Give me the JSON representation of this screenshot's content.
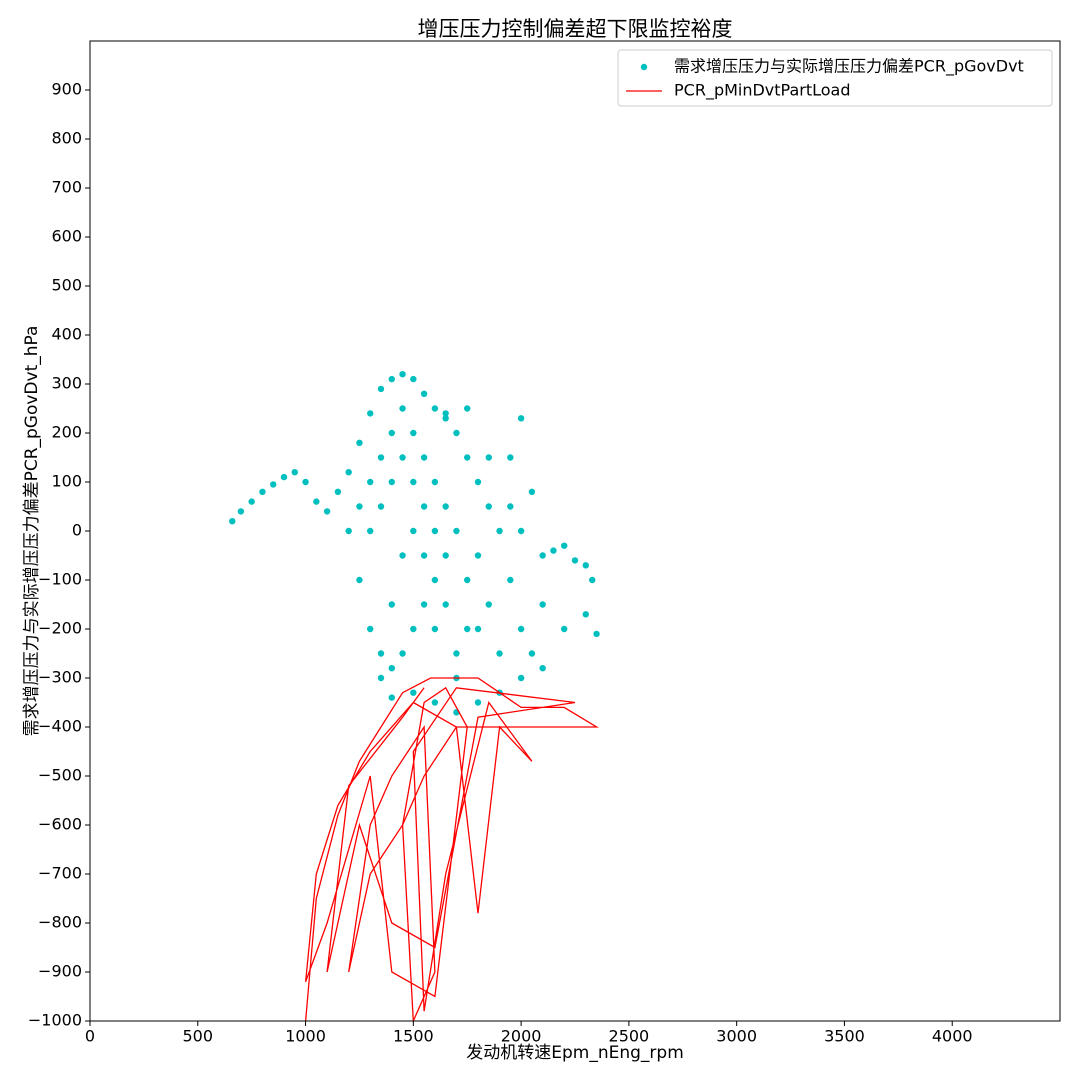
{
  "chart_data": {
    "type": "scatter",
    "title": "增压压力控制偏差超下限监控裕度",
    "x_label": "发动机转速Epm_nEng_rpm",
    "y_label": "需求增压压力与实际增压压力偏差PCR_pGovDvt_hPa",
    "xlim": [
      0,
      4500
    ],
    "ylim": [
      -1000,
      1000
    ],
    "xticks": [
      0,
      500,
      1000,
      1500,
      2000,
      2500,
      3000,
      3500,
      4000
    ],
    "yticks": [
      {
        "value": -1000,
        "label": "−1000"
      },
      {
        "value": -900,
        "label": "−900"
      },
      {
        "value": -800,
        "label": "−800"
      },
      {
        "value": -700,
        "label": "−700"
      },
      {
        "value": -600,
        "label": "−600"
      },
      {
        "value": -500,
        "label": "−500"
      },
      {
        "value": -400,
        "label": "−400"
      },
      {
        "value": -300,
        "label": "−300"
      },
      {
        "value": -200,
        "label": "−200"
      },
      {
        "value": -100,
        "label": "−100"
      },
      0,
      100,
      200,
      300,
      400,
      500,
      600,
      700,
      800,
      900
    ],
    "legend": "upper right",
    "series": [
      {
        "name": "需求增压压力与实际增压压力偏差PCR_pGovDvt",
        "type": "scatter",
        "color": "#00bfbf",
        "x": [
          660,
          700,
          750,
          800,
          850,
          900,
          950,
          1000,
          1050,
          1100,
          1150,
          1200,
          1250,
          1300,
          1350,
          1400,
          1450,
          1500,
          1550,
          1600,
          1650,
          1700,
          1750,
          1800,
          1850,
          1900,
          1950,
          2000,
          2050,
          2100,
          2150,
          2200,
          2250,
          2300,
          2330,
          2350,
          2300,
          2200,
          2100,
          2000,
          1900,
          1800,
          1700,
          1600,
          1500,
          1400,
          1350,
          1300,
          1250,
          1200,
          1250,
          1300,
          1350,
          1400,
          1450,
          1500,
          1550,
          1600,
          1650,
          1700,
          1650,
          1600,
          1550,
          1500,
          1450,
          1400,
          1350,
          1400,
          1450,
          1500,
          1550,
          1600,
          1700,
          1800,
          1750,
          1800,
          1850,
          1900,
          1950,
          2000,
          2050,
          2100,
          2000,
          1950,
          1850,
          1750,
          1650,
          1300,
          1350,
          1400,
          1450,
          1500,
          1550,
          1600,
          1650,
          1700,
          1750
        ],
        "y": [
          20,
          40,
          60,
          80,
          95,
          110,
          120,
          100,
          60,
          40,
          80,
          120,
          180,
          240,
          290,
          310,
          320,
          310,
          280,
          250,
          230,
          200,
          150,
          100,
          50,
          0,
          150,
          230,
          80,
          -50,
          -40,
          -30,
          -60,
          -70,
          -100,
          -210,
          -170,
          -200,
          -280,
          -300,
          -330,
          -350,
          -370,
          -350,
          -330,
          -340,
          -300,
          -200,
          -100,
          0,
          50,
          100,
          150,
          200,
          250,
          200,
          150,
          100,
          50,
          0,
          -50,
          -100,
          -150,
          -200,
          -250,
          -280,
          -250,
          -150,
          -50,
          0,
          50,
          -200,
          -250,
          -200,
          -100,
          -50,
          -150,
          -250,
          -100,
          -200,
          -250,
          -150,
          0,
          50,
          150,
          250,
          240,
          0,
          50,
          100,
          150,
          100,
          -50,
          0,
          -150,
          -300,
          -200
        ]
      },
      {
        "name": "PCR_pMinDvtPartLoad",
        "type": "line",
        "color": "#ff0000",
        "x": [
          1000,
          1050,
          1150,
          1250,
          1350,
          1450,
          1580,
          1800,
          1900,
          2000,
          2200,
          2350,
          2000,
          1700,
          1550,
          1450,
          1300,
          1200,
          1300,
          1400,
          1550,
          1600,
          1500,
          1450,
          1550,
          1650,
          1750,
          1600,
          1400,
          1300,
          1100,
          1000,
          1050,
          1150,
          1300,
          1500,
          1700,
          1800,
          1900,
          2050,
          1850,
          1650,
          1550,
          1500,
          1700,
          2250,
          1800,
          1600,
          1400,
          1250,
          1100,
          1200,
          1450,
          1550
        ],
        "y": [
          -1000,
          -750,
          -580,
          -470,
          -400,
          -330,
          -300,
          -300,
          -330,
          -360,
          -360,
          -400,
          -400,
          -400,
          -500,
          -600,
          -700,
          -900,
          -600,
          -500,
          -400,
          -900,
          -1000,
          -600,
          -350,
          -320,
          -400,
          -950,
          -900,
          -500,
          -800,
          -920,
          -700,
          -560,
          -450,
          -350,
          -400,
          -780,
          -400,
          -470,
          -350,
          -700,
          -980,
          -450,
          -320,
          -350,
          -380,
          -850,
          -800,
          -600,
          -900,
          -520,
          -380,
          -320
        ]
      }
    ]
  }
}
